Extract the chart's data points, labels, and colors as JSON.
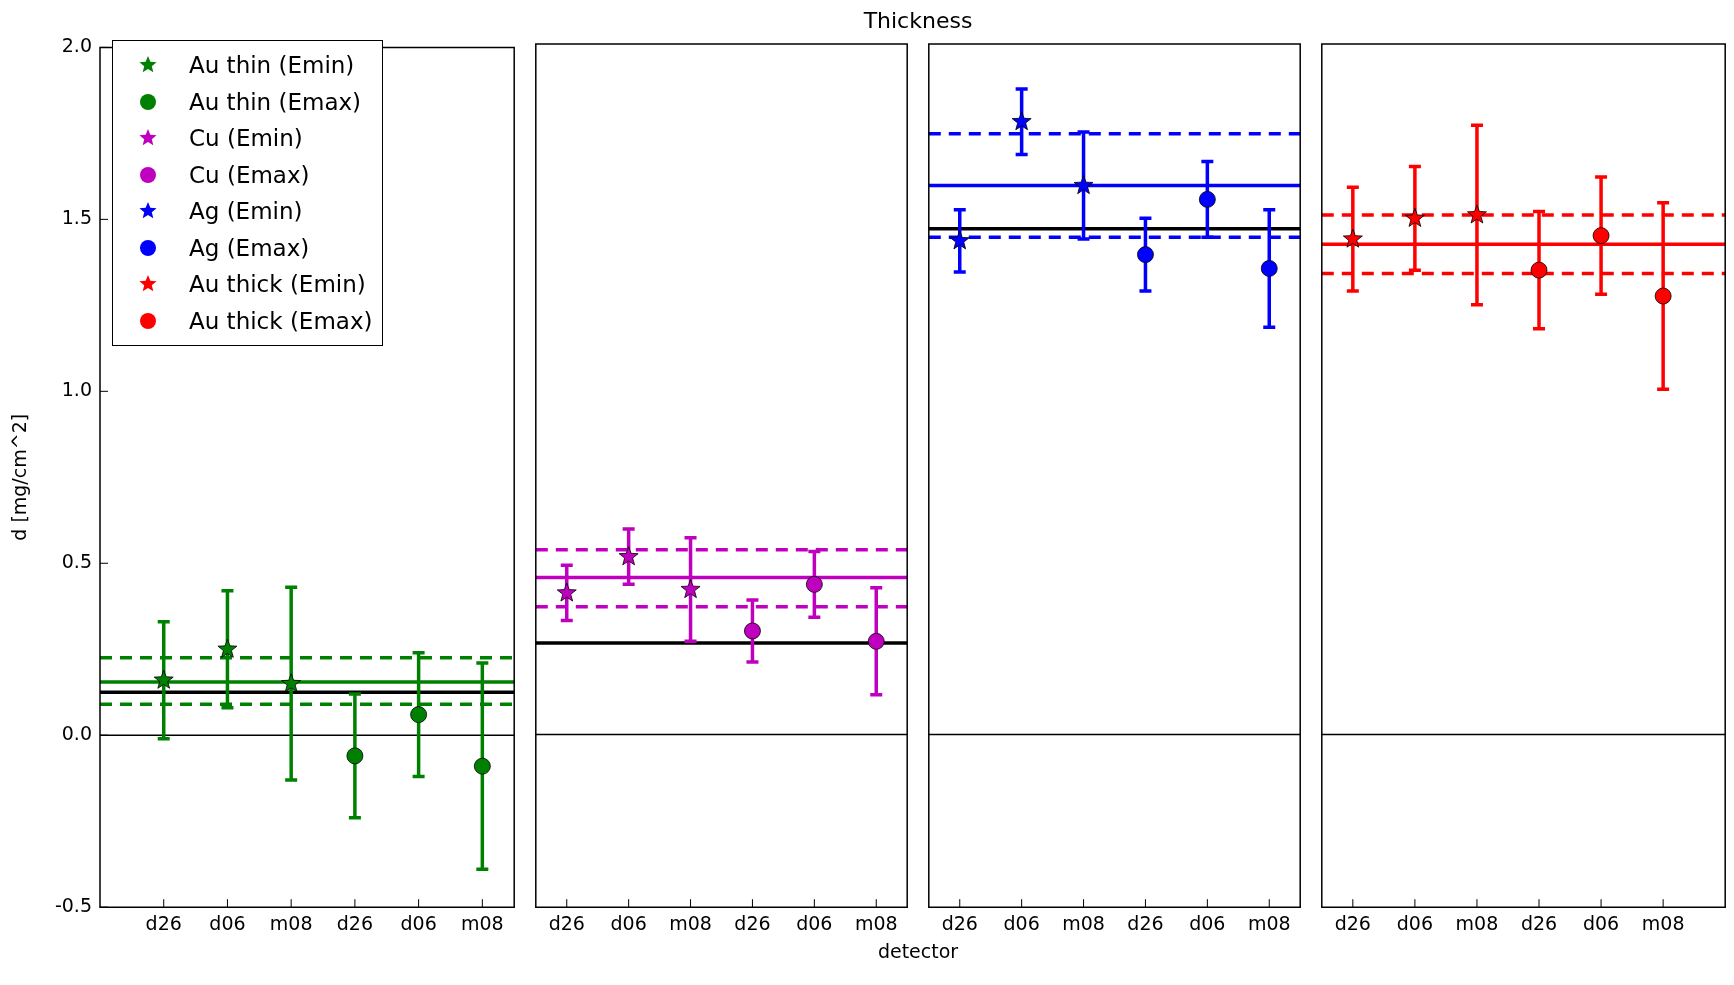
{
  "chart_data": [
    {
      "type": "scatter",
      "ylabel": "d [mg/cm^2]",
      "categories": [
        "d26",
        "d06",
        "m08",
        "d26",
        "d06",
        "m08"
      ],
      "ylim": [
        -0.5,
        2.0
      ],
      "yticks": [
        -0.5,
        {
          "value": 0,
          "label": "0.0"
        },
        0.5,
        {
          "value": 1,
          "label": "1.0"
        },
        1.5,
        {
          "value": 2,
          "label": "2.0"
        }
      ],
      "grid": false,
      "legend": "top left",
      "ref_lines": [
        {
          "axis": "y",
          "value": 0,
          "color": "#000000"
        },
        {
          "axis": "y",
          "value": 0.155,
          "color": "#008000",
          "line_style": "solid"
        },
        {
          "axis": "y",
          "value": 0.225,
          "color": "#008000",
          "line_style": "dashed"
        },
        {
          "axis": "y",
          "value": 0.09,
          "color": "#008000",
          "line_style": "dashed"
        },
        {
          "axis": "y",
          "value": 0.125,
          "color": "#000000",
          "line_style": "solid"
        }
      ],
      "series": [
        {
          "name": "Au thin (Emin)",
          "marker": "star",
          "color": "#008000",
          "values": [
            0.16,
            0.25,
            0.15,
            null,
            null,
            null
          ],
          "errors": [
            0.17,
            0.17,
            0.28,
            null,
            null,
            null
          ]
        },
        {
          "name": "Au thin (Emax)",
          "marker": "circle",
          "color": "#008000",
          "values": [
            null,
            null,
            null,
            -0.06,
            0.06,
            -0.09
          ],
          "errors": [
            null,
            null,
            null,
            0.18,
            0.18,
            0.3
          ]
        },
        {
          "name": "Cu (Emin)",
          "marker": "star",
          "color": "#bf00bf",
          "values": [
            null,
            null,
            null,
            null,
            null,
            null
          ]
        },
        {
          "name": "Cu (Emax)",
          "marker": "circle",
          "color": "#bf00bf",
          "values": [
            null,
            null,
            null,
            null,
            null,
            null
          ]
        },
        {
          "name": "Ag (Emin)",
          "marker": "star",
          "color": "#0000ff",
          "values": [
            null,
            null,
            null,
            null,
            null,
            null
          ]
        },
        {
          "name": "Ag (Emax)",
          "marker": "circle",
          "color": "#0000ff",
          "values": [
            null,
            null,
            null,
            null,
            null,
            null
          ]
        },
        {
          "name": "Au thick (Emin)",
          "marker": "star",
          "color": "#ff0000",
          "values": [
            null,
            null,
            null,
            null,
            null,
            null
          ]
        },
        {
          "name": "Au thick (Emax)",
          "marker": "circle",
          "color": "#ff0000",
          "values": [
            null,
            null,
            null,
            null,
            null,
            null
          ]
        }
      ]
    },
    {
      "type": "scatter",
      "title": "Thickness",
      "xlabel": "detector",
      "categories": [
        "d26",
        "d06",
        "m08",
        "d26",
        "d06",
        "m08"
      ],
      "ylim": [
        -0.5,
        2.0
      ],
      "grid": false,
      "tick_labels": "x",
      "ref_lines": [
        {
          "axis": "y",
          "value": 0,
          "color": "#000000"
        },
        {
          "axis": "y",
          "value": 0.455,
          "color": "#bf00bf",
          "line_style": "solid"
        },
        {
          "axis": "y",
          "value": 0.535,
          "color": "#bf00bf",
          "line_style": "dashed"
        },
        {
          "axis": "y",
          "value": 0.37,
          "color": "#bf00bf",
          "line_style": "dashed"
        },
        {
          "axis": "y",
          "value": 0.265,
          "color": "#000000",
          "line_style": "solid"
        }
      ],
      "series": [
        {
          "marker": "star",
          "color": "#bf00bf",
          "values": [
            0.41,
            0.515,
            0.42,
            null,
            null,
            null
          ],
          "errors": [
            0.08,
            0.08,
            0.15,
            null,
            null,
            null
          ]
        },
        {
          "marker": "circle",
          "color": "#bf00bf",
          "values": [
            null,
            null,
            null,
            0.3,
            0.435,
            0.27
          ],
          "errors": [
            null,
            null,
            null,
            0.09,
            0.095,
            0.155
          ]
        }
      ]
    },
    {
      "type": "scatter",
      "categories": [
        "d26",
        "d06",
        "m08",
        "d26",
        "d06",
        "m08"
      ],
      "ylim": [
        -0.5,
        2.0
      ],
      "grid": false,
      "tick_labels": "x",
      "ref_lines": [
        {
          "axis": "y",
          "value": 0,
          "color": "#000000"
        },
        {
          "axis": "y",
          "value": 1.59,
          "color": "#0000ff",
          "line_style": "solid"
        },
        {
          "axis": "y",
          "value": 1.74,
          "color": "#0000ff",
          "line_style": "dashed"
        },
        {
          "axis": "y",
          "value": 1.44,
          "color": "#0000ff",
          "line_style": "dashed"
        },
        {
          "axis": "y",
          "value": 1.465,
          "color": "#000000",
          "line_style": "solid"
        }
      ],
      "series": [
        {
          "marker": "star",
          "color": "#0000ff",
          "values": [
            1.43,
            1.775,
            1.59,
            null,
            null,
            null
          ],
          "errors": [
            0.09,
            0.095,
            0.155,
            null,
            null,
            null
          ]
        },
        {
          "marker": "circle",
          "color": "#0000ff",
          "values": [
            null,
            null,
            null,
            1.39,
            1.55,
            1.35
          ],
          "errors": [
            null,
            null,
            null,
            0.105,
            0.11,
            0.17
          ]
        }
      ]
    },
    {
      "type": "scatter",
      "categories": [
        "d26",
        "d06",
        "m08",
        "d26",
        "d06",
        "m08"
      ],
      "ylim": [
        -0.5,
        2.0
      ],
      "grid": false,
      "tick_labels": "x",
      "ref_lines": [
        {
          "axis": "y",
          "value": 0,
          "color": "#000000"
        },
        {
          "axis": "y",
          "value": 1.42,
          "color": "#ff0000",
          "line_style": "solid"
        },
        {
          "axis": "y",
          "value": 1.505,
          "color": "#ff0000",
          "line_style": "dashed"
        },
        {
          "axis": "y",
          "value": 1.335,
          "color": "#ff0000",
          "line_style": "dashed"
        }
      ],
      "series": [
        {
          "marker": "star",
          "color": "#ff0000",
          "values": [
            1.435,
            1.495,
            1.505,
            null,
            null,
            null
          ],
          "errors": [
            0.15,
            0.15,
            0.26,
            null,
            null,
            null
          ]
        },
        {
          "marker": "circle",
          "color": "#ff0000",
          "values": [
            null,
            null,
            null,
            1.345,
            1.445,
            1.27
          ],
          "errors": [
            null,
            null,
            null,
            0.17,
            0.17,
            0.27
          ]
        }
      ]
    }
  ]
}
